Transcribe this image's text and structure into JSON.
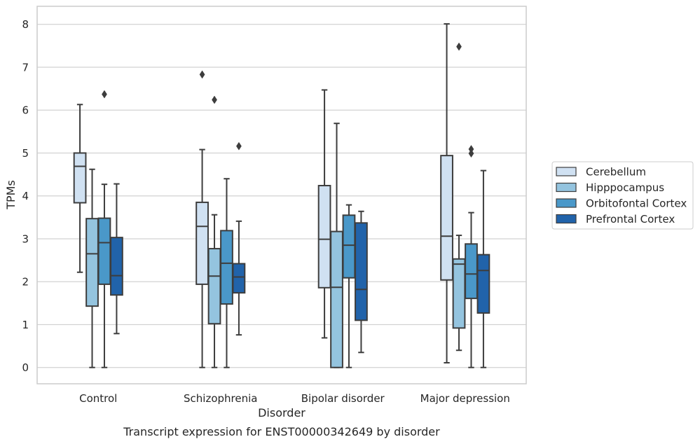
{
  "caption": "Transcript expression for ENST00000342649 by disorder",
  "chart_data": {
    "type": "boxplot",
    "xlabel": "Disorder",
    "ylabel": "TPMs",
    "ylim": [
      -0.38,
      8.42
    ],
    "yticks": [
      "0",
      "1",
      "2",
      "3",
      "4",
      "5",
      "6",
      "7",
      "8"
    ],
    "grid": "horizontal",
    "legend_position": "right",
    "categories": [
      "Control",
      "Schizophrenia",
      "Bipolar disorder",
      "Major depression"
    ],
    "series": [
      {
        "name": "Cerebellum",
        "color": "#d0e1f2",
        "boxes": [
          {
            "min": 2.22,
            "q1": 3.84,
            "median": 4.69,
            "q3": 5.0,
            "max": 6.13,
            "outliers": []
          },
          {
            "min": 0.0,
            "q1": 1.94,
            "median": 3.29,
            "q3": 3.85,
            "max": 5.08,
            "outliers": [
              6.83
            ]
          },
          {
            "min": 0.69,
            "q1": 1.86,
            "median": 2.99,
            "q3": 4.24,
            "max": 6.47,
            "outliers": []
          },
          {
            "min": 0.11,
            "q1": 2.04,
            "median": 3.06,
            "q3": 4.94,
            "max": 8.01,
            "outliers": []
          }
        ]
      },
      {
        "name": "Hipppocampus",
        "color": "#94c4df",
        "boxes": [
          {
            "min": 0.0,
            "q1": 1.43,
            "median": 2.65,
            "q3": 3.47,
            "max": 4.62,
            "outliers": []
          },
          {
            "min": 0.0,
            "q1": 1.02,
            "median": 2.13,
            "q3": 2.77,
            "max": 3.56,
            "outliers": [
              6.24
            ]
          },
          {
            "min": 0.0,
            "q1": 0.0,
            "median": 1.87,
            "q3": 3.17,
            "max": 5.69,
            "outliers": []
          },
          {
            "min": 0.4,
            "q1": 0.92,
            "median": 2.41,
            "q3": 2.53,
            "max": 3.08,
            "outliers": [
              7.48
            ]
          }
        ]
      },
      {
        "name": "Orbitofontal Cortex",
        "color": "#4a98c9",
        "boxes": [
          {
            "min": 0.0,
            "q1": 1.94,
            "median": 2.91,
            "q3": 3.48,
            "max": 4.27,
            "outliers": [
              6.37
            ]
          },
          {
            "min": 0.0,
            "q1": 1.48,
            "median": 2.43,
            "q3": 3.19,
            "max": 4.4,
            "outliers": []
          },
          {
            "min": 0.0,
            "q1": 2.09,
            "median": 2.85,
            "q3": 3.55,
            "max": 3.79,
            "outliers": []
          },
          {
            "min": 0.0,
            "q1": 1.61,
            "median": 2.18,
            "q3": 2.88,
            "max": 3.61,
            "outliers": [
              4.99,
              5.09
            ]
          }
        ]
      },
      {
        "name": "Prefrontal Cortex",
        "color": "#2163aa",
        "boxes": [
          {
            "min": 0.79,
            "q1": 1.69,
            "median": 2.14,
            "q3": 3.03,
            "max": 4.28,
            "outliers": []
          },
          {
            "min": 0.76,
            "q1": 1.74,
            "median": 2.11,
            "q3": 2.42,
            "max": 3.41,
            "outliers": [
              5.16
            ]
          },
          {
            "min": 0.35,
            "q1": 1.1,
            "median": 1.82,
            "q3": 3.37,
            "max": 3.64,
            "outliers": []
          },
          {
            "min": 0.0,
            "q1": 1.27,
            "median": 2.26,
            "q3": 2.63,
            "max": 4.59,
            "outliers": []
          }
        ]
      }
    ]
  }
}
